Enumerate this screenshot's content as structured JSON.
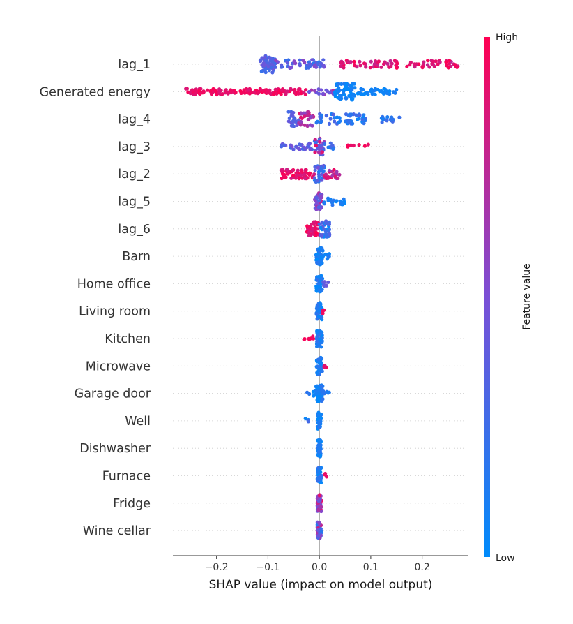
{
  "chart_data": {
    "type": "scatter",
    "subtype": "shap-beeswarm",
    "xlabel": "SHAP value (impact on model output)",
    "xlim": [
      -0.285,
      0.29
    ],
    "xticks": [
      {
        "value": -0.2,
        "label": "−0.2"
      },
      {
        "value": -0.1,
        "label": "−0.1"
      },
      {
        "value": 0.0,
        "label": "0.0"
      },
      {
        "value": 0.1,
        "label": "0.1"
      },
      {
        "value": 0.2,
        "label": "0.2"
      }
    ],
    "colorbar": {
      "label": "Feature value",
      "high": "High",
      "low": "Low",
      "high_color": "#ff0052",
      "low_color": "#008bfb",
      "mid_color": "#7a4fd6"
    },
    "features": [
      {
        "name": "lag_1",
        "segments": [
          {
            "x": [
              -0.115,
              -0.085
            ],
            "n": 60,
            "spread": 1.0,
            "c": [
              0.2,
              0.45
            ]
          },
          {
            "x": [
              -0.085,
              0.01
            ],
            "n": 50,
            "spread": 0.55,
            "c": [
              0.15,
              0.6
            ]
          },
          {
            "x": [
              0.04,
              0.27
            ],
            "n": 90,
            "spread": 0.45,
            "c": [
              0.75,
              1.0
            ]
          }
        ]
      },
      {
        "name": "Generated energy",
        "segments": [
          {
            "x": [
              -0.26,
              -0.02
            ],
            "n": 140,
            "spread": 0.35,
            "c": [
              0.85,
              1.0
            ]
          },
          {
            "x": [
              -0.02,
              0.03
            ],
            "n": 20,
            "spread": 0.35,
            "c": [
              0.4,
              0.7
            ]
          },
          {
            "x": [
              0.03,
              0.07
            ],
            "n": 70,
            "spread": 1.0,
            "c": [
              0.0,
              0.15
            ]
          },
          {
            "x": [
              0.07,
              0.15
            ],
            "n": 40,
            "spread": 0.35,
            "c": [
              0.0,
              0.12
            ]
          }
        ]
      },
      {
        "name": "lag_4",
        "segments": [
          {
            "x": [
              -0.06,
              -0.04
            ],
            "n": 25,
            "spread": 0.9,
            "c": [
              0.25,
              0.45
            ]
          },
          {
            "x": [
              -0.04,
              -0.01
            ],
            "n": 30,
            "spread": 0.9,
            "c": [
              0.55,
              0.95
            ]
          },
          {
            "x": [
              -0.01,
              0.09
            ],
            "n": 55,
            "spread": 0.6,
            "c": [
              0.05,
              0.35
            ]
          },
          {
            "x": [
              0.12,
              0.16
            ],
            "n": 14,
            "spread": 0.4,
            "c": [
              0.1,
              0.3
            ]
          }
        ]
      },
      {
        "name": "lag_3",
        "segments": [
          {
            "x": [
              -0.075,
              -0.01
            ],
            "n": 30,
            "spread": 0.4,
            "c": [
              0.2,
              0.5
            ]
          },
          {
            "x": [
              -0.01,
              0.01
            ],
            "n": 30,
            "spread": 1.0,
            "c": [
              0.2,
              0.9
            ]
          },
          {
            "x": [
              0.01,
              0.03
            ],
            "n": 10,
            "spread": 0.4,
            "c": [
              0.1,
              0.4
            ]
          },
          {
            "x": [
              0.05,
              0.1
            ],
            "n": 7,
            "spread": 0.3,
            "c": [
              0.9,
              1.0
            ]
          }
        ]
      },
      {
        "name": "lag_2",
        "segments": [
          {
            "x": [
              -0.075,
              -0.01
            ],
            "n": 60,
            "spread": 0.55,
            "c": [
              0.8,
              1.0
            ]
          },
          {
            "x": [
              -0.01,
              0.01
            ],
            "n": 35,
            "spread": 1.0,
            "c": [
              0.05,
              0.5
            ]
          },
          {
            "x": [
              0.01,
              0.04
            ],
            "n": 25,
            "spread": 0.55,
            "c": [
              0.6,
              0.95
            ]
          }
        ]
      },
      {
        "name": "lag_5",
        "segments": [
          {
            "x": [
              -0.01,
              0.005
            ],
            "n": 40,
            "spread": 1.0,
            "c": [
              0.3,
              0.75
            ]
          },
          {
            "x": [
              0.005,
              0.05
            ],
            "n": 25,
            "spread": 0.45,
            "c": [
              0.0,
              0.2
            ]
          }
        ]
      },
      {
        "name": "lag_6",
        "segments": [
          {
            "x": [
              -0.025,
              0.0
            ],
            "n": 40,
            "spread": 0.85,
            "c": [
              0.8,
              1.0
            ]
          },
          {
            "x": [
              0.0,
              0.02
            ],
            "n": 40,
            "spread": 1.0,
            "c": [
              0.0,
              0.45
            ]
          }
        ]
      },
      {
        "name": "Barn",
        "segments": [
          {
            "x": [
              -0.007,
              0.007
            ],
            "n": 45,
            "spread": 1.0,
            "c": [
              0.0,
              0.2
            ]
          },
          {
            "x": [
              0.007,
              0.022
            ],
            "n": 12,
            "spread": 0.35,
            "c": [
              0.0,
              0.15
            ]
          }
        ]
      },
      {
        "name": "Home office",
        "segments": [
          {
            "x": [
              -0.006,
              0.006
            ],
            "n": 45,
            "spread": 1.0,
            "c": [
              0.0,
              0.2
            ]
          },
          {
            "x": [
              0.006,
              0.018
            ],
            "n": 8,
            "spread": 0.3,
            "c": [
              0.2,
              0.45
            ]
          }
        ]
      },
      {
        "name": "Living room",
        "segments": [
          {
            "x": [
              -0.006,
              0.006
            ],
            "n": 45,
            "spread": 1.0,
            "c": [
              0.0,
              0.2
            ]
          },
          {
            "x": [
              0.006,
              0.012
            ],
            "n": 5,
            "spread": 0.3,
            "c": [
              0.9,
              1.0
            ]
          }
        ]
      },
      {
        "name": "Kitchen",
        "segments": [
          {
            "x": [
              -0.03,
              -0.01
            ],
            "n": 8,
            "spread": 0.3,
            "c": [
              0.9,
              1.0
            ]
          },
          {
            "x": [
              -0.006,
              0.006
            ],
            "n": 40,
            "spread": 1.0,
            "c": [
              0.0,
              0.2
            ]
          }
        ]
      },
      {
        "name": "Microwave",
        "segments": [
          {
            "x": [
              -0.006,
              0.006
            ],
            "n": 45,
            "spread": 1.0,
            "c": [
              0.0,
              0.2
            ]
          },
          {
            "x": [
              0.006,
              0.013
            ],
            "n": 4,
            "spread": 0.3,
            "c": [
              0.85,
              1.0
            ]
          }
        ]
      },
      {
        "name": "Garage door",
        "segments": [
          {
            "x": [
              -0.025,
              -0.008
            ],
            "n": 5,
            "spread": 0.3,
            "c": [
              0.0,
              0.2
            ]
          },
          {
            "x": [
              -0.007,
              0.007
            ],
            "n": 45,
            "spread": 1.0,
            "c": [
              0.0,
              0.2
            ]
          },
          {
            "x": [
              0.007,
              0.02
            ],
            "n": 6,
            "spread": 0.3,
            "c": [
              0.0,
              0.2
            ]
          }
        ]
      },
      {
        "name": "Well",
        "segments": [
          {
            "x": [
              -0.028,
              -0.01
            ],
            "n": 4,
            "spread": 0.35,
            "c": [
              0.0,
              0.3
            ]
          },
          {
            "x": [
              -0.004,
              0.004
            ],
            "n": 40,
            "spread": 1.0,
            "c": [
              0.0,
              0.2
            ]
          }
        ]
      },
      {
        "name": "Dishwasher",
        "segments": [
          {
            "x": [
              -0.003,
              0.003
            ],
            "n": 40,
            "spread": 1.0,
            "c": [
              0.0,
              0.2
            ]
          }
        ]
      },
      {
        "name": "Furnace",
        "segments": [
          {
            "x": [
              -0.004,
              0.004
            ],
            "n": 40,
            "spread": 1.0,
            "c": [
              0.0,
              0.25
            ]
          },
          {
            "x": [
              0.008,
              0.015
            ],
            "n": 3,
            "spread": 0.3,
            "c": [
              0.9,
              1.0
            ]
          }
        ]
      },
      {
        "name": "Fridge",
        "segments": [
          {
            "x": [
              -0.004,
              0.004
            ],
            "n": 45,
            "spread": 1.0,
            "c": [
              0.35,
              0.95
            ]
          }
        ]
      },
      {
        "name": "Wine cellar",
        "segments": [
          {
            "x": [
              -0.004,
              0.004
            ],
            "n": 45,
            "spread": 1.0,
            "c": [
              0.1,
              0.85
            ]
          }
        ]
      }
    ]
  }
}
